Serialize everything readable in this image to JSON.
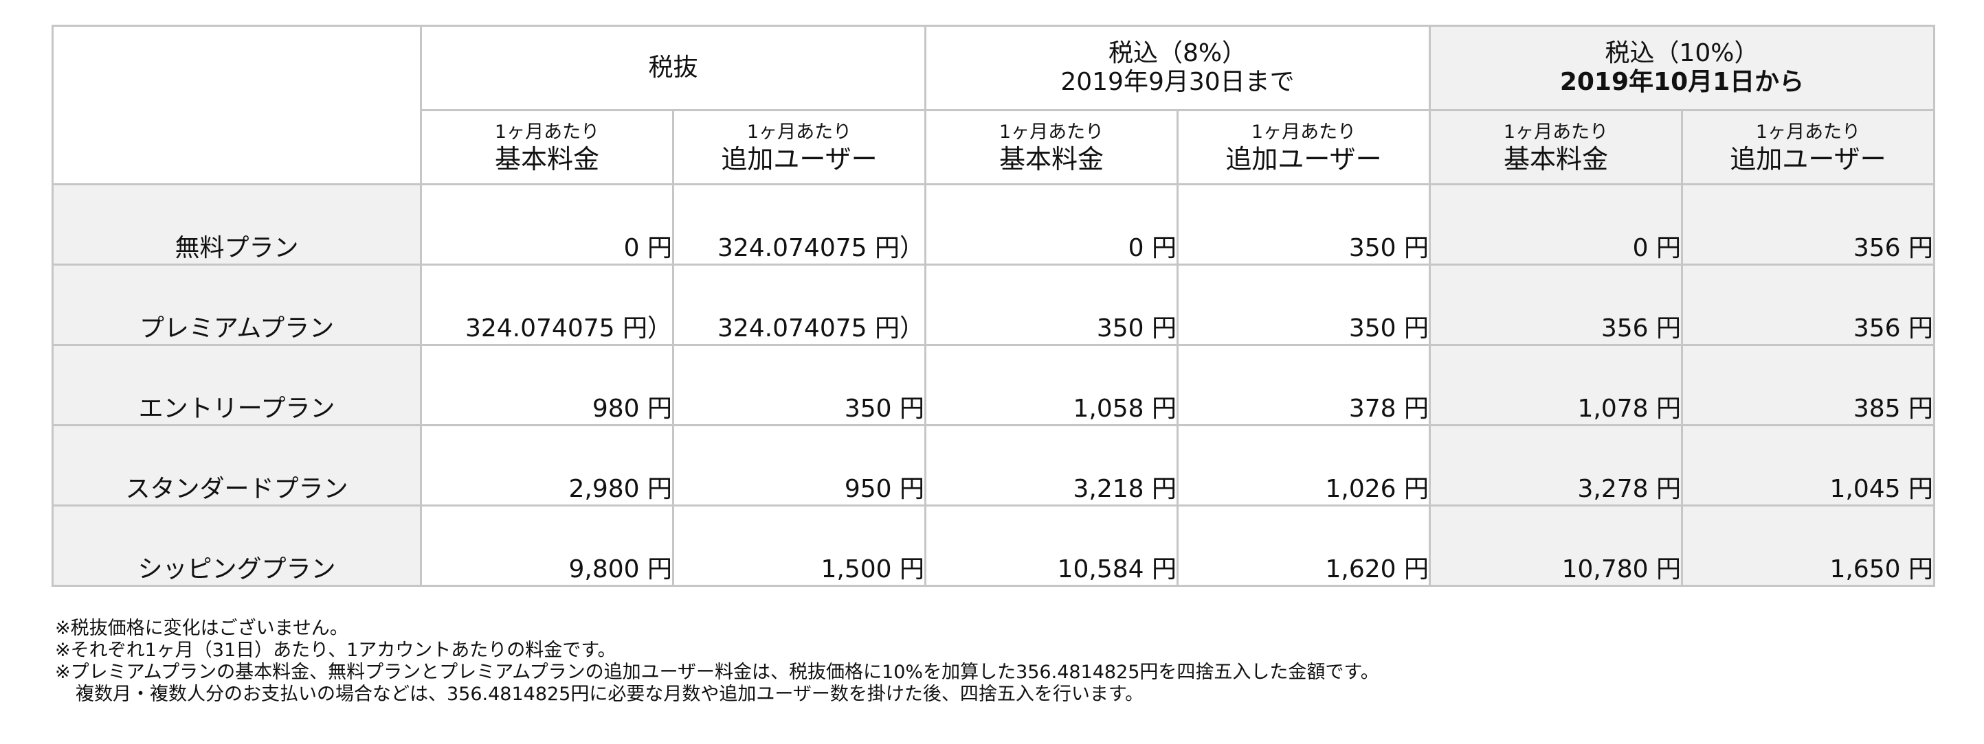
{
  "table": {
    "groups": [
      {
        "lines": [
          "税抜"
        ]
      },
      {
        "lines": [
          "税込（8%）",
          "2019年9月30日まで"
        ]
      },
      {
        "lines": [
          "税込（10%）",
          "2019年10月1日から"
        ]
      }
    ],
    "subheaders": [
      {
        "small": "1ヶ月あたり",
        "big": "基本料金"
      },
      {
        "small": "1ヶ月あたり",
        "big": "追加ユーザー"
      },
      {
        "small": "1ヶ月あたり",
        "big": "基本料金"
      },
      {
        "small": "1ヶ月あたり",
        "big": "追加ユーザー"
      },
      {
        "small": "1ヶ月あたり",
        "big": "基本料金"
      },
      {
        "small": "1ヶ月あたり",
        "big": "追加ユーザー"
      }
    ],
    "rows": [
      {
        "plan": "無料プラン",
        "values": [
          "0 円",
          "324.074075 円）",
          "0 円",
          "350 円",
          "0 円",
          "356 円"
        ]
      },
      {
        "plan": "プレミアムプラン",
        "values": [
          "324.074075 円）",
          "324.074075 円）",
          "350 円",
          "350 円",
          "356 円",
          "356 円"
        ]
      },
      {
        "plan": "エントリープラン",
        "values": [
          "980 円",
          "350 円",
          "1,058 円",
          "378 円",
          "1,078 円",
          "385 円"
        ]
      },
      {
        "plan": "スタンダードプラン",
        "values": [
          "2,980 円",
          "950 円",
          "3,218 円",
          "1,026 円",
          "3,278 円",
          "1,045 円"
        ]
      },
      {
        "plan": "シッピングプラン",
        "values": [
          "9,800 円",
          "1,500 円",
          "10,584 円",
          "1,620 円",
          "10,780 円",
          "1,650 円"
        ]
      }
    ]
  },
  "notes": [
    "※税抜価格に変化はございません。",
    "※それぞれ1ヶ月（31日）あたり、1アカウントあたりの料金です。",
    "※プレミアムプランの基本料金、無料プランとプレミアムプランの追加ユーザー料金は、税抜価格に10%を加算した356.4814825円を四捨五入した金額です。",
    "複数月・複数人分のお支払いの場合などは、356.4814825円に必要な月数や追加ユーザー数を掛けた後、四捨五入を行います。"
  ]
}
